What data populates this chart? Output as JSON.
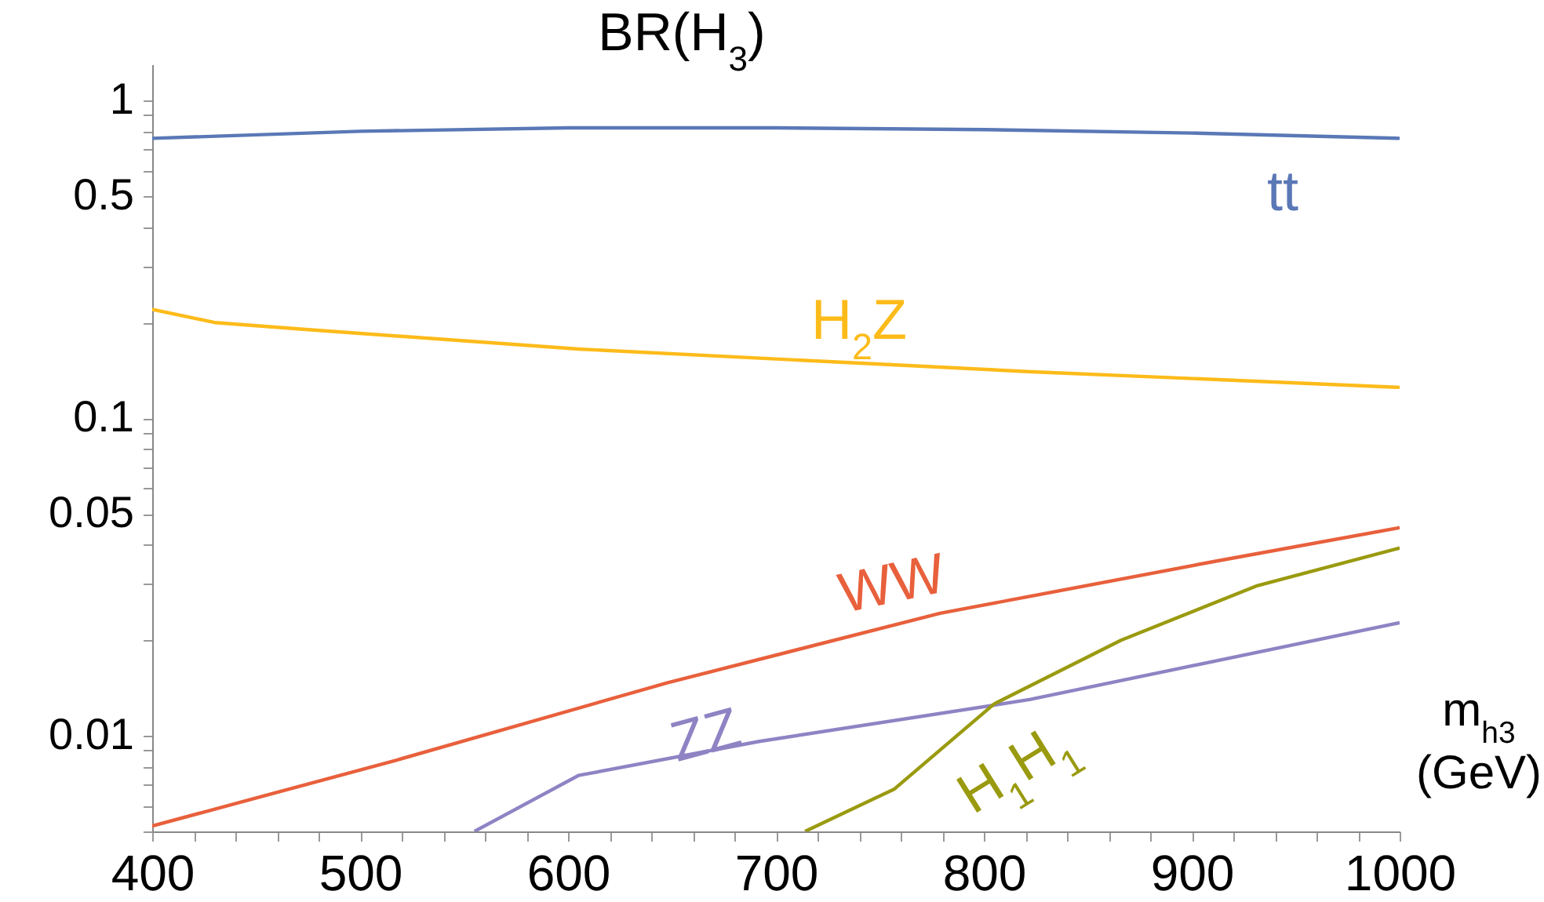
{
  "chart_data": {
    "type": "line",
    "title": "BR(H$_{3}$)",
    "xlabel": "m$_{h3}$ (GeV)",
    "log": "y",
    "xlim": [
      400,
      1000
    ],
    "xticks": [
      400,
      {
        "value": 420,
        "label": null
      },
      {
        "value": 440,
        "label": null
      },
      {
        "value": 460,
        "label": null
      },
      {
        "value": 480,
        "label": null
      },
      500,
      {
        "value": 520,
        "label": null
      },
      {
        "value": 540,
        "label": null
      },
      {
        "value": 560,
        "label": null
      },
      {
        "value": 580,
        "label": null
      },
      600,
      {
        "value": 620,
        "label": null
      },
      {
        "value": 640,
        "label": null
      },
      {
        "value": 660,
        "label": null
      },
      {
        "value": 680,
        "label": null
      },
      700,
      {
        "value": 720,
        "label": null
      },
      {
        "value": 740,
        "label": null
      },
      {
        "value": 760,
        "label": null
      },
      {
        "value": 780,
        "label": null
      },
      800,
      {
        "value": 820,
        "label": null
      },
      {
        "value": 840,
        "label": null
      },
      {
        "value": 860,
        "label": null
      },
      {
        "value": 880,
        "label": null
      },
      900,
      {
        "value": 920,
        "label": null
      },
      {
        "value": 940,
        "label": null
      },
      {
        "value": 960,
        "label": null
      },
      {
        "value": 980,
        "label": null
      },
      1000
    ],
    "ylim": [
      0.005,
      1.3
    ],
    "yticks": [
      {
        "value": 0.005,
        "label": null
      },
      {
        "value": 0.006,
        "label": null
      },
      {
        "value": 0.007,
        "label": null
      },
      {
        "value": 0.008,
        "label": null
      },
      {
        "value": 0.009,
        "label": null
      },
      0.01,
      {
        "value": 0.02,
        "label": null
      },
      {
        "value": 0.03,
        "label": null
      },
      {
        "value": 0.04,
        "label": null
      },
      0.05,
      {
        "value": 0.06,
        "label": null
      },
      {
        "value": 0.07,
        "label": null
      },
      {
        "value": 0.08,
        "label": null
      },
      {
        "value": 0.09,
        "label": null
      },
      0.1,
      {
        "value": 0.2,
        "label": null
      },
      {
        "value": 0.3,
        "label": null
      },
      {
        "value": 0.4,
        "label": null
      },
      0.5,
      {
        "value": 0.6,
        "label": null
      },
      {
        "value": 0.7,
        "label": null
      },
      {
        "value": 0.8,
        "label": null
      },
      {
        "value": 0.9,
        "label": null
      },
      1
    ],
    "series": [
      {
        "name": "tt",
        "color": "#5a78b6",
        "x": [
          400,
          500,
          600,
          700,
          800,
          900,
          1000
        ],
        "values": [
          0.76,
          0.8,
          0.82,
          0.82,
          0.81,
          0.79,
          0.76
        ]
      },
      {
        "name": "H$_{2}$Z",
        "color": "#fdbb1a",
        "x": [
          400,
          430,
          475,
          605,
          823,
          1000
        ],
        "values": [
          0.22,
          0.2,
          0.19,
          0.165,
          0.14,
          0.125
        ]
      },
      {
        "name": "WW",
        "color": "#e8603c",
        "x": [
          400,
          518,
          648,
          779,
          910,
          1000
        ],
        "values": [
          0.0052,
          0.0084,
          0.0147,
          0.0243,
          0.0353,
          0.0452
        ]
      },
      {
        "name": "ZZ",
        "color": "#8f83c4",
        "x": [
          555,
          605,
          692,
          822,
          1000
        ],
        "values": [
          0.005,
          0.0075,
          0.0096,
          0.013,
          0.0227
        ]
      },
      {
        "name": "H$_{1}$H$_{1}$",
        "color": "#9a9a10",
        "x": [
          714,
          757,
          805,
          866,
          931,
          1000
        ],
        "values": [
          0.005,
          0.0068,
          0.0126,
          0.02,
          0.0296,
          0.039
        ]
      }
    ]
  }
}
